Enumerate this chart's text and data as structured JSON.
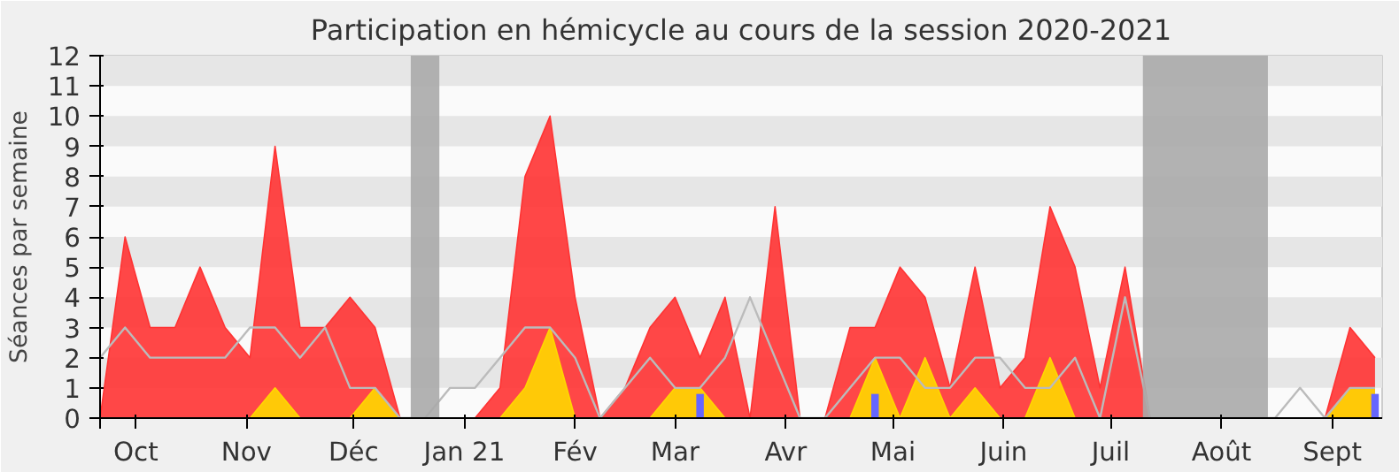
{
  "chart_data": {
    "type": "area",
    "title": "Participation en hémicycle au cours de la session 2020-2021",
    "ylabel": "Séances par semaine",
    "x": [
      "2020-09-21",
      "2020-09-28",
      "2020-10-05",
      "2020-10-12",
      "2020-10-19",
      "2020-10-26",
      "2020-11-02",
      "2020-11-09",
      "2020-11-16",
      "2020-11-23",
      "2020-11-30",
      "2020-12-07",
      "2020-12-14",
      "2020-12-21",
      "2020-12-28",
      "2021-01-04",
      "2021-01-11",
      "2021-01-18",
      "2021-01-25",
      "2021-02-01",
      "2021-02-08",
      "2021-02-15",
      "2021-02-22",
      "2021-03-01",
      "2021-03-08",
      "2021-03-15",
      "2021-03-22",
      "2021-03-29",
      "2021-04-05",
      "2021-04-12",
      "2021-04-19",
      "2021-04-26",
      "2021-05-03",
      "2021-05-10",
      "2021-05-17",
      "2021-05-24",
      "2021-05-31",
      "2021-06-07",
      "2021-06-14",
      "2021-06-21",
      "2021-06-28",
      "2021-07-05",
      "2021-07-12",
      "2021-07-19",
      "2021-07-26",
      "2021-08-02",
      "2021-08-09",
      "2021-08-16",
      "2021-08-23",
      "2021-08-30",
      "2021-09-06",
      "2021-09-13"
    ],
    "series": [
      {
        "color": "#ff3333",
        "values": [
          0,
          6,
          3,
          3,
          5,
          3,
          2,
          9,
          3,
          3,
          4,
          3,
          0,
          0,
          0,
          0,
          1,
          8,
          10,
          4,
          0,
          1,
          3,
          4,
          2,
          4,
          0,
          7,
          0,
          0,
          3,
          3,
          5,
          4,
          1,
          5,
          1,
          2,
          7,
          5,
          1,
          5,
          0,
          0,
          0,
          0,
          0,
          0,
          0,
          0,
          3,
          2
        ]
      },
      {
        "type": "area",
        "color": "#ffd700",
        "values": [
          0,
          0,
          0,
          0,
          0,
          0,
          0,
          1,
          0,
          0,
          0,
          1,
          0,
          0,
          0,
          0,
          0,
          1,
          3,
          0,
          0,
          0,
          0,
          1,
          1,
          0,
          0,
          0,
          0,
          0,
          0,
          2,
          0,
          2,
          0,
          1,
          0,
          0,
          2,
          0,
          0,
          0,
          0,
          0,
          0,
          0,
          0,
          0,
          0,
          0,
          1,
          1
        ]
      },
      {
        "type": "line",
        "color": "#bbbbbb",
        "values": [
          2,
          3,
          2,
          2,
          2,
          2,
          3,
          3,
          2,
          3,
          1,
          1,
          0,
          0,
          1,
          1,
          2,
          3,
          3,
          2,
          0,
          1,
          2,
          1,
          1,
          2,
          4,
          2,
          0,
          0,
          1,
          2,
          2,
          1,
          1,
          2,
          2,
          1,
          1,
          2,
          0,
          4,
          0,
          0,
          0,
          0,
          0,
          0,
          1,
          0,
          1,
          1
        ]
      },
      {
        "type": "bar",
        "color": "#6666ff",
        "values": [
          null,
          null,
          null,
          null,
          null,
          null,
          null,
          null,
          null,
          null,
          null,
          null,
          null,
          null,
          null,
          null,
          null,
          null,
          null,
          null,
          null,
          null,
          null,
          null,
          0.8,
          null,
          null,
          null,
          null,
          null,
          null,
          0.8,
          null,
          null,
          null,
          null,
          null,
          null,
          null,
          null,
          null,
          null,
          null,
          null,
          null,
          null,
          null,
          null,
          null,
          null,
          null,
          0.8
        ]
      }
    ],
    "xlim": [
      "2020-09-21",
      "2021-09-15"
    ],
    "ylim": [
      0,
      12
    ],
    "yticks": [
      0,
      1,
      2,
      3,
      4,
      5,
      6,
      7,
      8,
      9,
      10,
      11,
      12
    ],
    "xticks": [
      {
        "value": "2020-09-21",
        "label": null
      },
      {
        "value": "2020-10-01",
        "label": "Oct"
      },
      {
        "value": "2020-11-01",
        "label": "Nov"
      },
      {
        "value": "2020-12-01",
        "label": "Déc"
      },
      {
        "value": "2021-01-01",
        "label": "Jan 21"
      },
      {
        "value": "2021-02-01",
        "label": "Fév"
      },
      {
        "value": "2021-03-01",
        "label": "Mar"
      },
      {
        "value": "2021-04-01",
        "label": "Avr"
      },
      {
        "value": "2021-05-01",
        "label": "Mai"
      },
      {
        "value": "2021-06-01",
        "label": "Juin"
      },
      {
        "value": "2021-07-01",
        "label": "Juil"
      },
      {
        "value": "2021-08-01",
        "label": "Août"
      },
      {
        "value": "2021-09-01",
        "label": "Sept"
      }
    ],
    "bands": [
      {
        "axis": "y",
        "from": 1,
        "to": 2,
        "color": "#e6e6e6"
      },
      {
        "axis": "y",
        "from": 3,
        "to": 4,
        "color": "#e6e6e6"
      },
      {
        "axis": "y",
        "from": 5,
        "to": 6,
        "color": "#e6e6e6"
      },
      {
        "axis": "y",
        "from": 7,
        "to": 8,
        "color": "#e6e6e6"
      },
      {
        "axis": "y",
        "from": 9,
        "to": 10,
        "color": "#e6e6e6"
      },
      {
        "axis": "y",
        "from": 11,
        "to": 12,
        "color": "#e6e6e6"
      },
      {
        "axis": "x",
        "from": "2020-12-17",
        "to": "2020-12-25",
        "color": "#aaaaaa"
      },
      {
        "axis": "x",
        "from": "2021-07-10",
        "to": "2021-08-14",
        "color": "#aaaaaa"
      }
    ]
  }
}
